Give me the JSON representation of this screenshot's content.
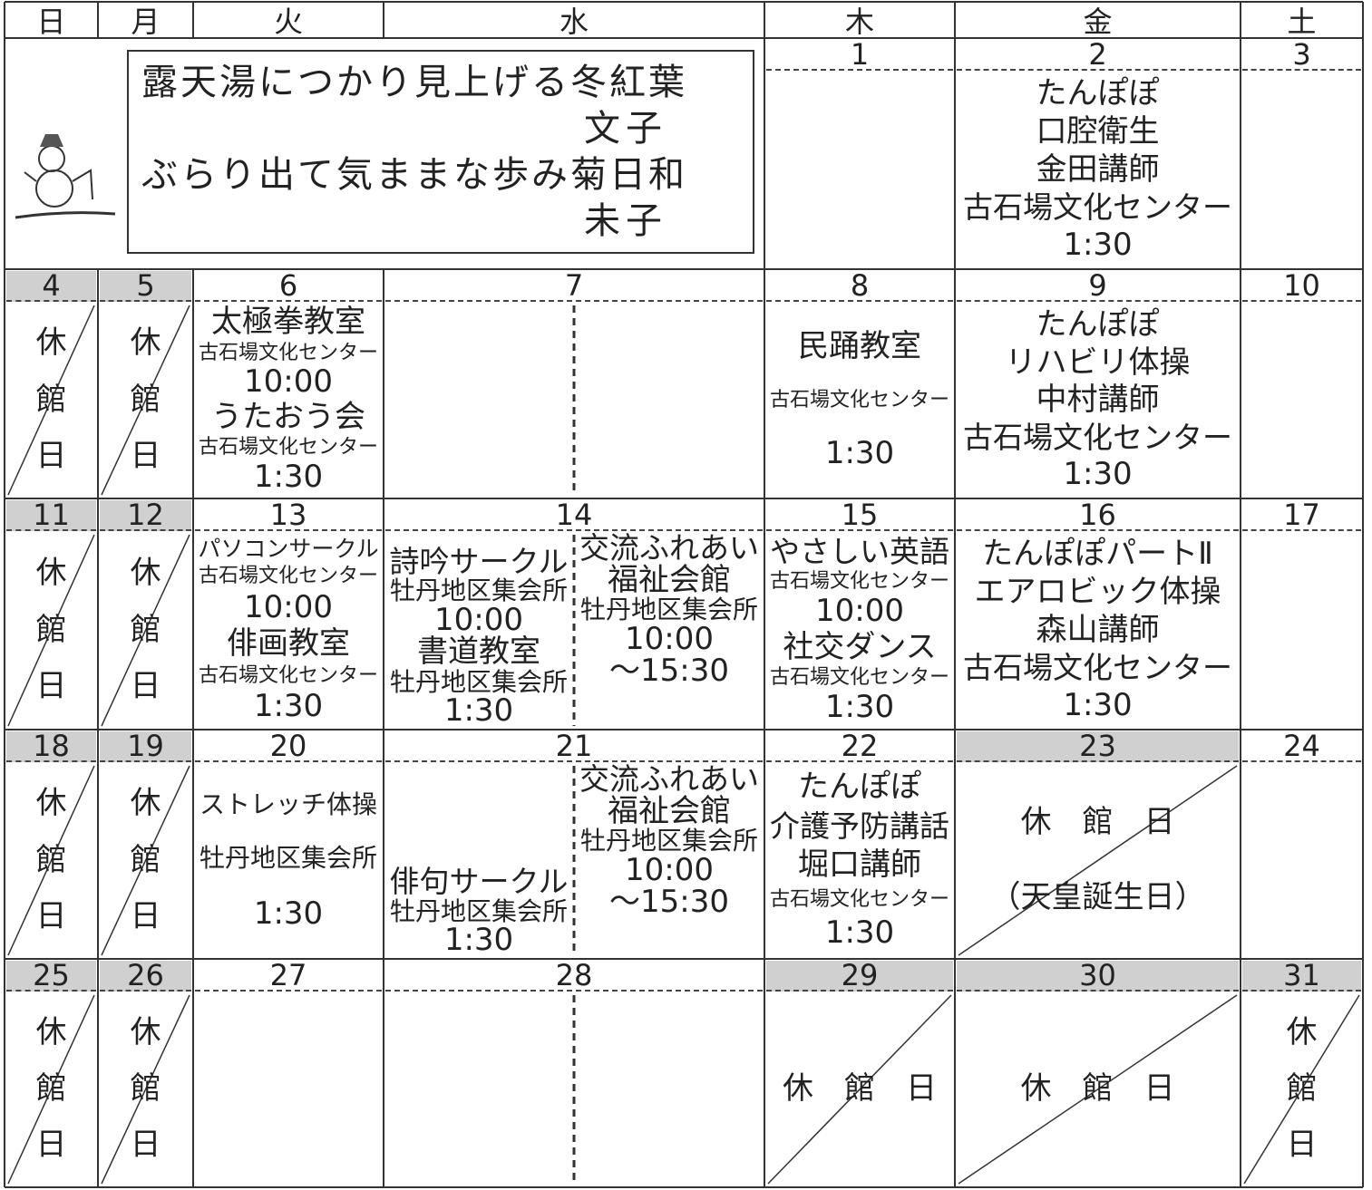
{
  "header": {
    "days": [
      "日",
      "月",
      "火",
      "水",
      "木",
      "金",
      "土"
    ]
  },
  "haiku": {
    "lines": [
      "露天湯につかり見上げる冬紅葉",
      "文子",
      "ぶらり出て気ままな歩み菊日和",
      "未子"
    ]
  },
  "weeks": [
    {
      "days": [
        {
          "date": "1",
          "lines": []
        },
        {
          "date": "2",
          "lines": [
            "たんぽぽ",
            "口腔衛生",
            "金田講師",
            "古石場文化センター",
            "1:30"
          ]
        },
        {
          "date": "3",
          "lines": []
        }
      ]
    },
    {
      "days": [
        {
          "date": "4",
          "lines": [
            "休",
            "館",
            "日"
          ]
        },
        {
          "date": "5",
          "lines": [
            "休",
            "館",
            "日"
          ]
        },
        {
          "date": "6",
          "lines": [
            "太極拳教室",
            "古石場文化センター",
            "10:00",
            "うたおう会",
            "古石場文化センター",
            "1:30"
          ]
        },
        {
          "date": "7",
          "left": [],
          "right": []
        },
        {
          "date": "8",
          "lines": [
            "民踊教室",
            "古石場文化センター",
            "1:30"
          ]
        },
        {
          "date": "9",
          "lines": [
            "たんぽぽ",
            "リハビリ体操",
            "中村講師",
            "古石場文化センター",
            "1:30"
          ]
        },
        {
          "date": "10",
          "lines": []
        }
      ]
    },
    {
      "days": [
        {
          "date": "11",
          "lines": [
            "休",
            "館",
            "日"
          ]
        },
        {
          "date": "12",
          "lines": [
            "休",
            "館",
            "日"
          ]
        },
        {
          "date": "13",
          "lines": [
            "パソコンサークル",
            "古石場文化センター",
            "10:00",
            "俳画教室",
            "古石場文化センター",
            "1:30"
          ]
        },
        {
          "date": "14",
          "left": [
            "詩吟サークル",
            "牡丹地区集会所",
            "10:00",
            "書道教室",
            "牡丹地区集会所",
            "1:30"
          ],
          "right": [
            "交流ふれあい",
            "福祉会館",
            "牡丹地区集会所",
            "10:00",
            "～15:30"
          ]
        },
        {
          "date": "15",
          "lines": [
            "やさしい英語",
            "古石場文化センター",
            "10:00",
            "社交ダンス",
            "古石場文化センター",
            "1:30"
          ]
        },
        {
          "date": "16",
          "lines": [
            "たんぽぽパートⅡ",
            "エアロビック体操",
            "森山講師",
            "古石場文化センター",
            "1:30"
          ]
        },
        {
          "date": "17",
          "lines": []
        }
      ]
    },
    {
      "days": [
        {
          "date": "18",
          "lines": [
            "休",
            "館",
            "日"
          ]
        },
        {
          "date": "19",
          "lines": [
            "休",
            "館",
            "日"
          ]
        },
        {
          "date": "20",
          "lines": [
            "ストレッチ体操",
            "牡丹地区集会所",
            "1:30"
          ]
        },
        {
          "date": "21",
          "left": [
            "俳句サークル",
            "牡丹地区集会所",
            "1:30"
          ],
          "right": [
            "交流ふれあい",
            "福祉会館",
            "牡丹地区集会所",
            "10:00",
            "～15:30"
          ]
        },
        {
          "date": "22",
          "lines": [
            "たんぽぽ",
            "介護予防講話",
            "堀口講師",
            "古石場文化センター",
            "1:30"
          ]
        },
        {
          "date": "23",
          "lines": [
            "休　館　日",
            "（天皇誕生日）"
          ]
        },
        {
          "date": "24",
          "lines": []
        }
      ]
    },
    {
      "days": [
        {
          "date": "25",
          "lines": [
            "休",
            "館",
            "日"
          ]
        },
        {
          "date": "26",
          "lines": [
            "休",
            "館",
            "日"
          ]
        },
        {
          "date": "27",
          "lines": []
        },
        {
          "date": "28",
          "left": [],
          "right": []
        },
        {
          "date": "29",
          "lines": [
            "休　館　日"
          ]
        },
        {
          "date": "30",
          "lines": [
            "休　館　日"
          ]
        },
        {
          "date": "31",
          "lines": [
            "休",
            "館",
            "日"
          ]
        }
      ]
    }
  ]
}
